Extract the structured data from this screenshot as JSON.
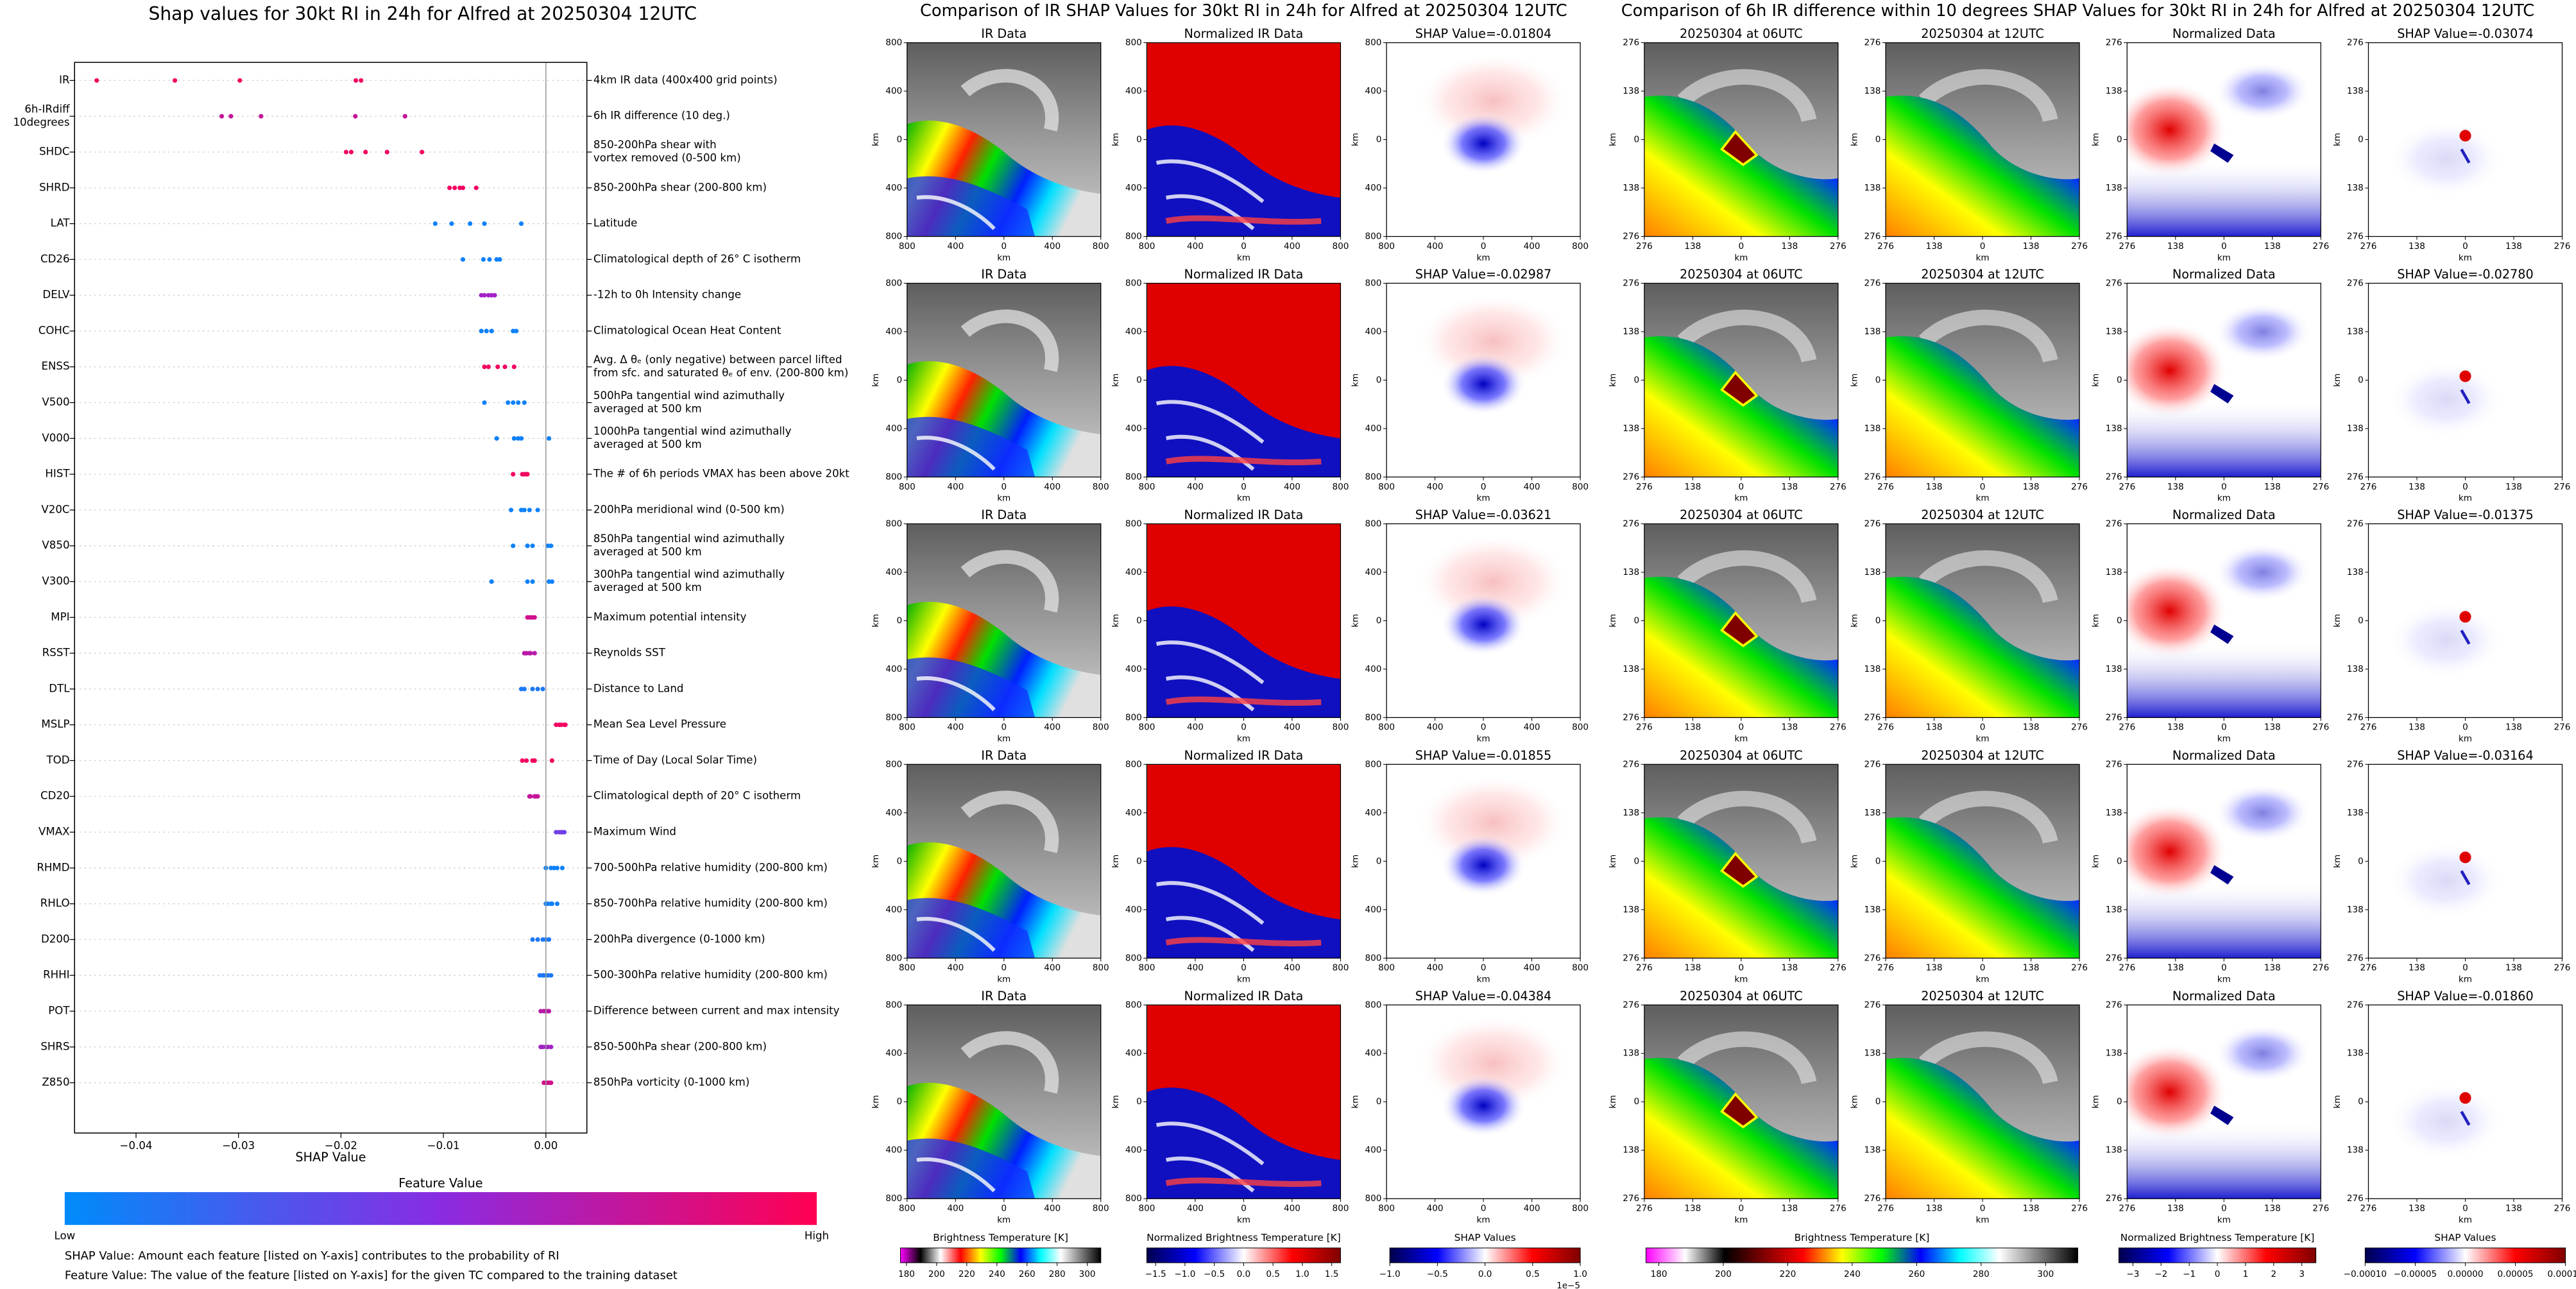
{
  "chart_data": {
    "type": "beeswarm",
    "title": "Shap values for 30kt RI in 24h for Alfred at 20250304 12UTC",
    "xlabel": "SHAP Value",
    "categories": [
      [
        "IR"
      ],
      [
        "6h-IRdiff",
        "10degrees"
      ],
      [
        "SHDC"
      ],
      [
        "SHRD"
      ],
      [
        "LAT"
      ],
      [
        "CD26"
      ],
      [
        "DELV"
      ],
      [
        "COHC"
      ],
      [
        "ENSS"
      ],
      [
        "V500"
      ],
      [
        "V000"
      ],
      [
        "HIST"
      ],
      [
        "V20C"
      ],
      [
        "V850"
      ],
      [
        "V300"
      ],
      [
        "MPI"
      ],
      [
        "RSST"
      ],
      [
        "DTL"
      ],
      [
        "MSLP"
      ],
      [
        "TOD"
      ],
      [
        "CD20"
      ],
      [
        "VMAX"
      ],
      [
        "RHMD"
      ],
      [
        "RHLO"
      ],
      [
        "D200"
      ],
      [
        "RHHI"
      ],
      [
        "POT"
      ],
      [
        "SHRS"
      ],
      [
        "Z850"
      ]
    ],
    "descriptions": [
      [
        "4km IR data (400x400 grid points)"
      ],
      [
        "6h IR difference (10 deg.)"
      ],
      [
        "850-200hPa shear with",
        "vortex removed (0-500 km)"
      ],
      [
        "850-200hPa shear (200-800 km)"
      ],
      [
        "Latitude"
      ],
      [
        "Climatological depth of 26° C isotherm"
      ],
      [
        "-12h to 0h Intensity change"
      ],
      [
        "Climatological Ocean Heat Content"
      ],
      [
        "Avg. Δ θₑ (only negative) between parcel lifted",
        "from sfc. and saturated θₑ of env. (200-800 km)"
      ],
      [
        "500hPa tangential wind azimuthally",
        "averaged at 500 km"
      ],
      [
        "1000hPa tangential wind azimuthally",
        "averaged at 500 km"
      ],
      [
        "The # of 6h periods VMAX has been above 20kt"
      ],
      [
        "200hPa meridional wind (0-500 km)"
      ],
      [
        "850hPa tangential wind azimuthally",
        "averaged at 500 km"
      ],
      [
        "300hPa tangential wind azimuthally",
        "averaged at 500 km"
      ],
      [
        "Maximum potential intensity"
      ],
      [
        "Reynolds SST"
      ],
      [
        "Distance to Land"
      ],
      [
        "Mean Sea Level Pressure"
      ],
      [
        "Time of Day (Local Solar Time)"
      ],
      [
        "Climatological depth of 20° C isotherm"
      ],
      [
        "Maximum Wind"
      ],
      [
        "700-500hPa relative humidity (200-800 km)"
      ],
      [
        "850-700hPa relative humidity (200-800 km)"
      ],
      [
        "200hPa divergence (0-1000 km)"
      ],
      [
        "500-300hPa relative humidity (200-800 km)"
      ],
      [
        "Difference between current and max intensity"
      ],
      [
        "850-500hPa shear (200-800 km)"
      ],
      [
        "850hPa vorticity (0-1000 km)"
      ]
    ],
    "shap_values": [
      [
        -0.01804,
        -0.02987,
        -0.03621,
        -0.01855,
        -0.04384
      ],
      [
        -0.03074,
        -0.0278,
        -0.01375,
        -0.03164,
        -0.0186
      ],
      [
        -0.0195,
        -0.019,
        -0.0176,
        -0.0155,
        -0.0121
      ],
      [
        -0.0094,
        -0.0089,
        -0.0084,
        -0.0081,
        -0.0068
      ],
      [
        -0.0108,
        -0.0092,
        -0.0074,
        -0.006,
        -0.0024
      ],
      [
        -0.0081,
        -0.0061,
        -0.0055,
        -0.0048,
        -0.0045
      ],
      [
        -0.0063,
        -0.006,
        -0.0056,
        -0.0053,
        -0.005
      ],
      [
        -0.0063,
        -0.0058,
        -0.0053,
        -0.0032,
        -0.0029
      ],
      [
        -0.006,
        -0.0056,
        -0.0047,
        -0.004,
        -0.0031
      ],
      [
        -0.006,
        -0.0037,
        -0.0032,
        -0.0027,
        -0.0021
      ],
      [
        -0.0048,
        -0.0031,
        -0.0027,
        -0.0024,
        0.0003
      ],
      [
        -0.0032,
        -0.0023,
        -0.0021,
        -0.0019,
        -0.0018
      ],
      [
        -0.0034,
        -0.0024,
        -0.0021,
        -0.0016,
        -0.0008
      ],
      [
        -0.0032,
        -0.0018,
        -0.0013,
        0.0002,
        0.0005
      ],
      [
        -0.0053,
        -0.0018,
        -0.0013,
        0.0003,
        0.0006
      ],
      [
        -0.0018,
        -0.0016,
        -0.0015,
        -0.0013,
        -0.0011
      ],
      [
        -0.0021,
        -0.0019,
        -0.0016,
        -0.0015,
        -0.0011
      ],
      [
        -0.0024,
        -0.0021,
        -0.0013,
        -0.0008,
        -0.0003
      ],
      [
        0.001,
        0.0013,
        0.0015,
        0.0018,
        0.0019
      ],
      [
        -0.0023,
        -0.0019,
        -0.0013,
        -0.0011,
        0.0006
      ],
      [
        -0.0016,
        -0.0015,
        -0.0011,
        -0.001,
        -0.0008
      ],
      [
        0.001,
        0.0013,
        0.0015,
        0.0016,
        0.0018
      ],
      [
        0.0,
        0.0005,
        0.0008,
        0.0011,
        0.0016
      ],
      [
        0.0,
        0.0002,
        0.0005,
        0.0006,
        0.0011
      ],
      [
        -0.0013,
        -0.0008,
        -0.0003,
        0.0,
        0.0003
      ],
      [
        -0.0006,
        -0.0003,
        -0.0002,
        0.0002,
        0.0005
      ],
      [
        -0.0005,
        -0.0002,
        0.0,
        0.0002,
        0.0003
      ],
      [
        -0.0005,
        -0.0003,
        0.0,
        0.0002,
        0.0005
      ],
      [
        -0.0002,
        0.0,
        0.0002,
        0.0003,
        0.0005
      ]
    ],
    "feature_values": [
      0.95,
      0.75,
      0.95,
      0.95,
      0.05,
      0.05,
      0.6,
      0.05,
      0.95,
      0.05,
      0.05,
      0.95,
      0.05,
      0.05,
      0.05,
      0.8,
      0.7,
      0.1,
      0.95,
      0.95,
      0.75,
      0.4,
      0.05,
      0.05,
      0.1,
      0.1,
      0.7,
      0.6,
      0.8
    ],
    "colormap": [
      "#008bfb",
      "#8a2be2",
      "#ff0052"
    ],
    "xlim": [
      -0.046,
      0.004
    ],
    "xticks": [
      {
        "value": -0.04,
        "label": "−0.04"
      },
      {
        "value": -0.03,
        "label": "−0.03"
      },
      {
        "value": -0.02,
        "label": "−0.02"
      },
      {
        "value": -0.01,
        "label": "−0.01"
      },
      {
        "value": 0,
        "label": "0.00"
      }
    ],
    "colorbar": {
      "label": "Feature Value",
      "low": "Low",
      "high": "High"
    },
    "notes": [
      "SHAP Value: Amount each feature [listed on Y-axis] contributes to the probability of RI",
      "Feature Value: The value of the feature [listed on Y-axis] for the given TC compared to the training dataset"
    ]
  },
  "ir_figure": {
    "title": "Comparison of IR SHAP Values for 30kt RI in 24h for Alfred at 20250304 12UTC",
    "columns": [
      "IR Data",
      "Normalized IR Data"
    ],
    "shap_titles": [
      "SHAP Value=-0.01804",
      "SHAP Value=-0.02987",
      "SHAP Value=-0.03621",
      "SHAP Value=-0.01855",
      "SHAP Value=-0.04384"
    ],
    "lim": [
      -800,
      800
    ],
    "ticks": [
      {
        "value": -800,
        "label": "800"
      },
      {
        "value": -400,
        "label": "400"
      },
      0,
      400,
      800
    ],
    "axis_label": "km",
    "colorbars": [
      {
        "label": "Brightness Temperature [K]",
        "lim": [
          176,
          309
        ],
        "ticks": [
          180,
          200,
          220,
          240,
          260,
          280,
          300
        ],
        "colors": [
          "#ff00ff",
          "#000000",
          "#ffffff",
          "#ff0000",
          "#ffff00",
          "#00ff00",
          "#0000ff",
          "#00ffff",
          "#ffffff",
          "#808080",
          "#000000"
        ]
      },
      {
        "label": "Normalized Brightness Temperature [K]",
        "lim": [
          -1.65,
          1.65
        ],
        "ticks": [
          {
            "value": -1.5,
            "label": "−1.5"
          },
          {
            "value": -1,
            "label": "−1.0"
          },
          {
            "value": -0.5,
            "label": "−0.5"
          },
          {
            "value": 0,
            "label": "0.0"
          },
          0.5,
          {
            "value": 1,
            "label": "1.0"
          },
          1.5
        ],
        "colors": [
          "#00004c",
          "#0000ff",
          "#ffffff",
          "#ff0000",
          "#7f0000"
        ]
      },
      {
        "label": "SHAP Values",
        "lim": [
          -1,
          1
        ],
        "ticks": [
          {
            "value": -1,
            "label": "−1.0"
          },
          {
            "value": -0.5,
            "label": "−0.5"
          },
          {
            "value": 0,
            "label": "0.0"
          },
          0.5,
          {
            "value": 1,
            "label": "1.0"
          }
        ],
        "offset": "1e−5",
        "colors": [
          "#00004c",
          "#0000ff",
          "#ffffff",
          "#ff0000",
          "#7f0000"
        ]
      }
    ]
  },
  "diff_figure": {
    "title": "Comparison of 6h IR difference within 10 degrees SHAP Values for 30kt RI in 24h for Alfred at 20250304 12UTC",
    "columns": [
      "20250304 at 06UTC",
      "20250304 at 12UTC",
      "Normalized Data"
    ],
    "shap_titles": [
      "SHAP Value=-0.03074",
      "SHAP Value=-0.02780",
      "SHAP Value=-0.01375",
      "SHAP Value=-0.03164",
      "SHAP Value=-0.01860"
    ],
    "lim": [
      -276,
      276
    ],
    "ticks": [
      {
        "value": -276,
        "label": "276"
      },
      {
        "value": -138,
        "label": "138"
      },
      0,
      138,
      276
    ],
    "axis_label": "km",
    "colorbars": [
      {
        "label": "Brightness Temperature [K]",
        "lim": [
          176,
          310
        ],
        "ticks": [
          180,
          200,
          220,
          240,
          260,
          280,
          300
        ],
        "colors": [
          "#ff00ff",
          "#ffffff",
          "#000000",
          "#800000",
          "#ff0000",
          "#ffff00",
          "#00ff00",
          "#0000ff",
          "#00ffff",
          "#ffffff",
          "#808080",
          "#000000"
        ]
      },
      {
        "label": "Normalized Brightness Temperature [K]",
        "lim": [
          -3.5,
          3.5
        ],
        "ticks": [
          {
            "value": -3,
            "label": "−3"
          },
          {
            "value": -2,
            "label": "−2"
          },
          {
            "value": -1,
            "label": "−1"
          },
          0,
          1,
          2,
          3
        ],
        "colors": [
          "#00004c",
          "#0000ff",
          "#ffffff",
          "#ff0000",
          "#7f0000"
        ]
      },
      {
        "label": "SHAP Values",
        "lim": [
          -0.0001,
          0.0001
        ],
        "ticks": [
          {
            "value": -0.0001,
            "label": "−0.00010"
          },
          {
            "value": -5e-05,
            "label": "−0.00005"
          },
          {
            "value": 0,
            "label": "0.00000"
          },
          {
            "value": 5e-05,
            "label": "0.00005"
          },
          {
            "value": 0.0001,
            "label": "0.00010"
          }
        ],
        "colors": [
          "#00004c",
          "#0000ff",
          "#ffffff",
          "#ff0000",
          "#7f0000"
        ]
      }
    ]
  }
}
